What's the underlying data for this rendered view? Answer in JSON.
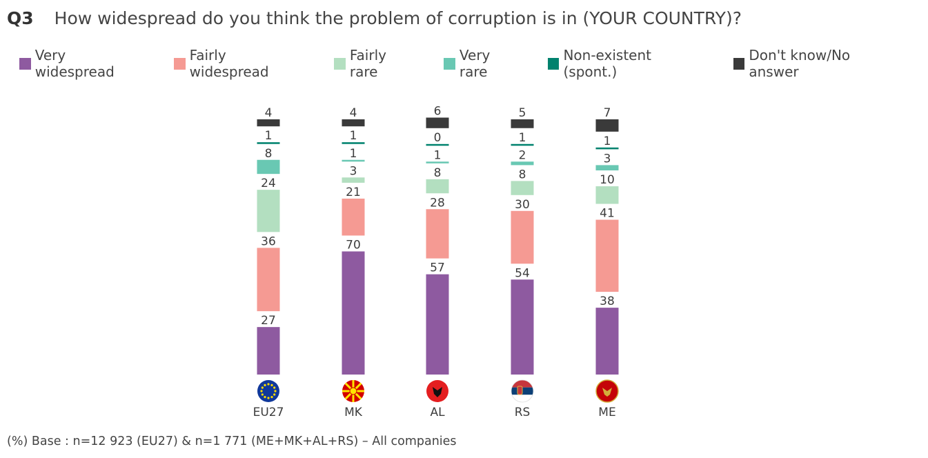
{
  "question": {
    "number": "Q3",
    "text": "How widespread do you think the problem of corruption is in (YOUR COUNTRY)?"
  },
  "footnote": "(%) Base : n=12 923 (EU27) & n=1 771 (ME+MK+AL+RS)  – All companies",
  "colors": {
    "very_widespread": "#8e5aa0",
    "fairly_widespread": "#f59a93",
    "fairly_rare": "#b3dfc0",
    "very_rare": "#69c8b3",
    "non_existent": "#00826e",
    "dont_know": "#3a3a3a"
  },
  "chart_data": {
    "type": "bar",
    "stacked": true,
    "categories": [
      "EU27",
      "MK",
      "AL",
      "RS",
      "ME"
    ],
    "flag_icons": [
      "eu-flag-icon",
      "north-macedonia-flag-icon",
      "albania-flag-icon",
      "serbia-flag-icon",
      "montenegro-flag-icon"
    ],
    "series": [
      {
        "name": "Very widespread",
        "color": "#8e5aa0",
        "values": [
          27,
          70,
          57,
          54,
          38
        ]
      },
      {
        "name": "Fairly widespread",
        "color": "#f59a93",
        "values": [
          36,
          21,
          28,
          30,
          41
        ]
      },
      {
        "name": "Fairly rare",
        "color": "#b3dfc0",
        "values": [
          24,
          3,
          8,
          8,
          10
        ]
      },
      {
        "name": "Very rare",
        "color": "#69c8b3",
        "values": [
          8,
          1,
          1,
          2,
          3
        ]
      },
      {
        "name": "Non-existent (spont.)",
        "color": "#00826e",
        "values": [
          1,
          1,
          0,
          1,
          1
        ]
      },
      {
        "name": "Don't know/No answer",
        "color": "#3a3a3a",
        "values": [
          4,
          4,
          6,
          5,
          7
        ]
      }
    ],
    "legend_position": "top",
    "grid": false
  }
}
